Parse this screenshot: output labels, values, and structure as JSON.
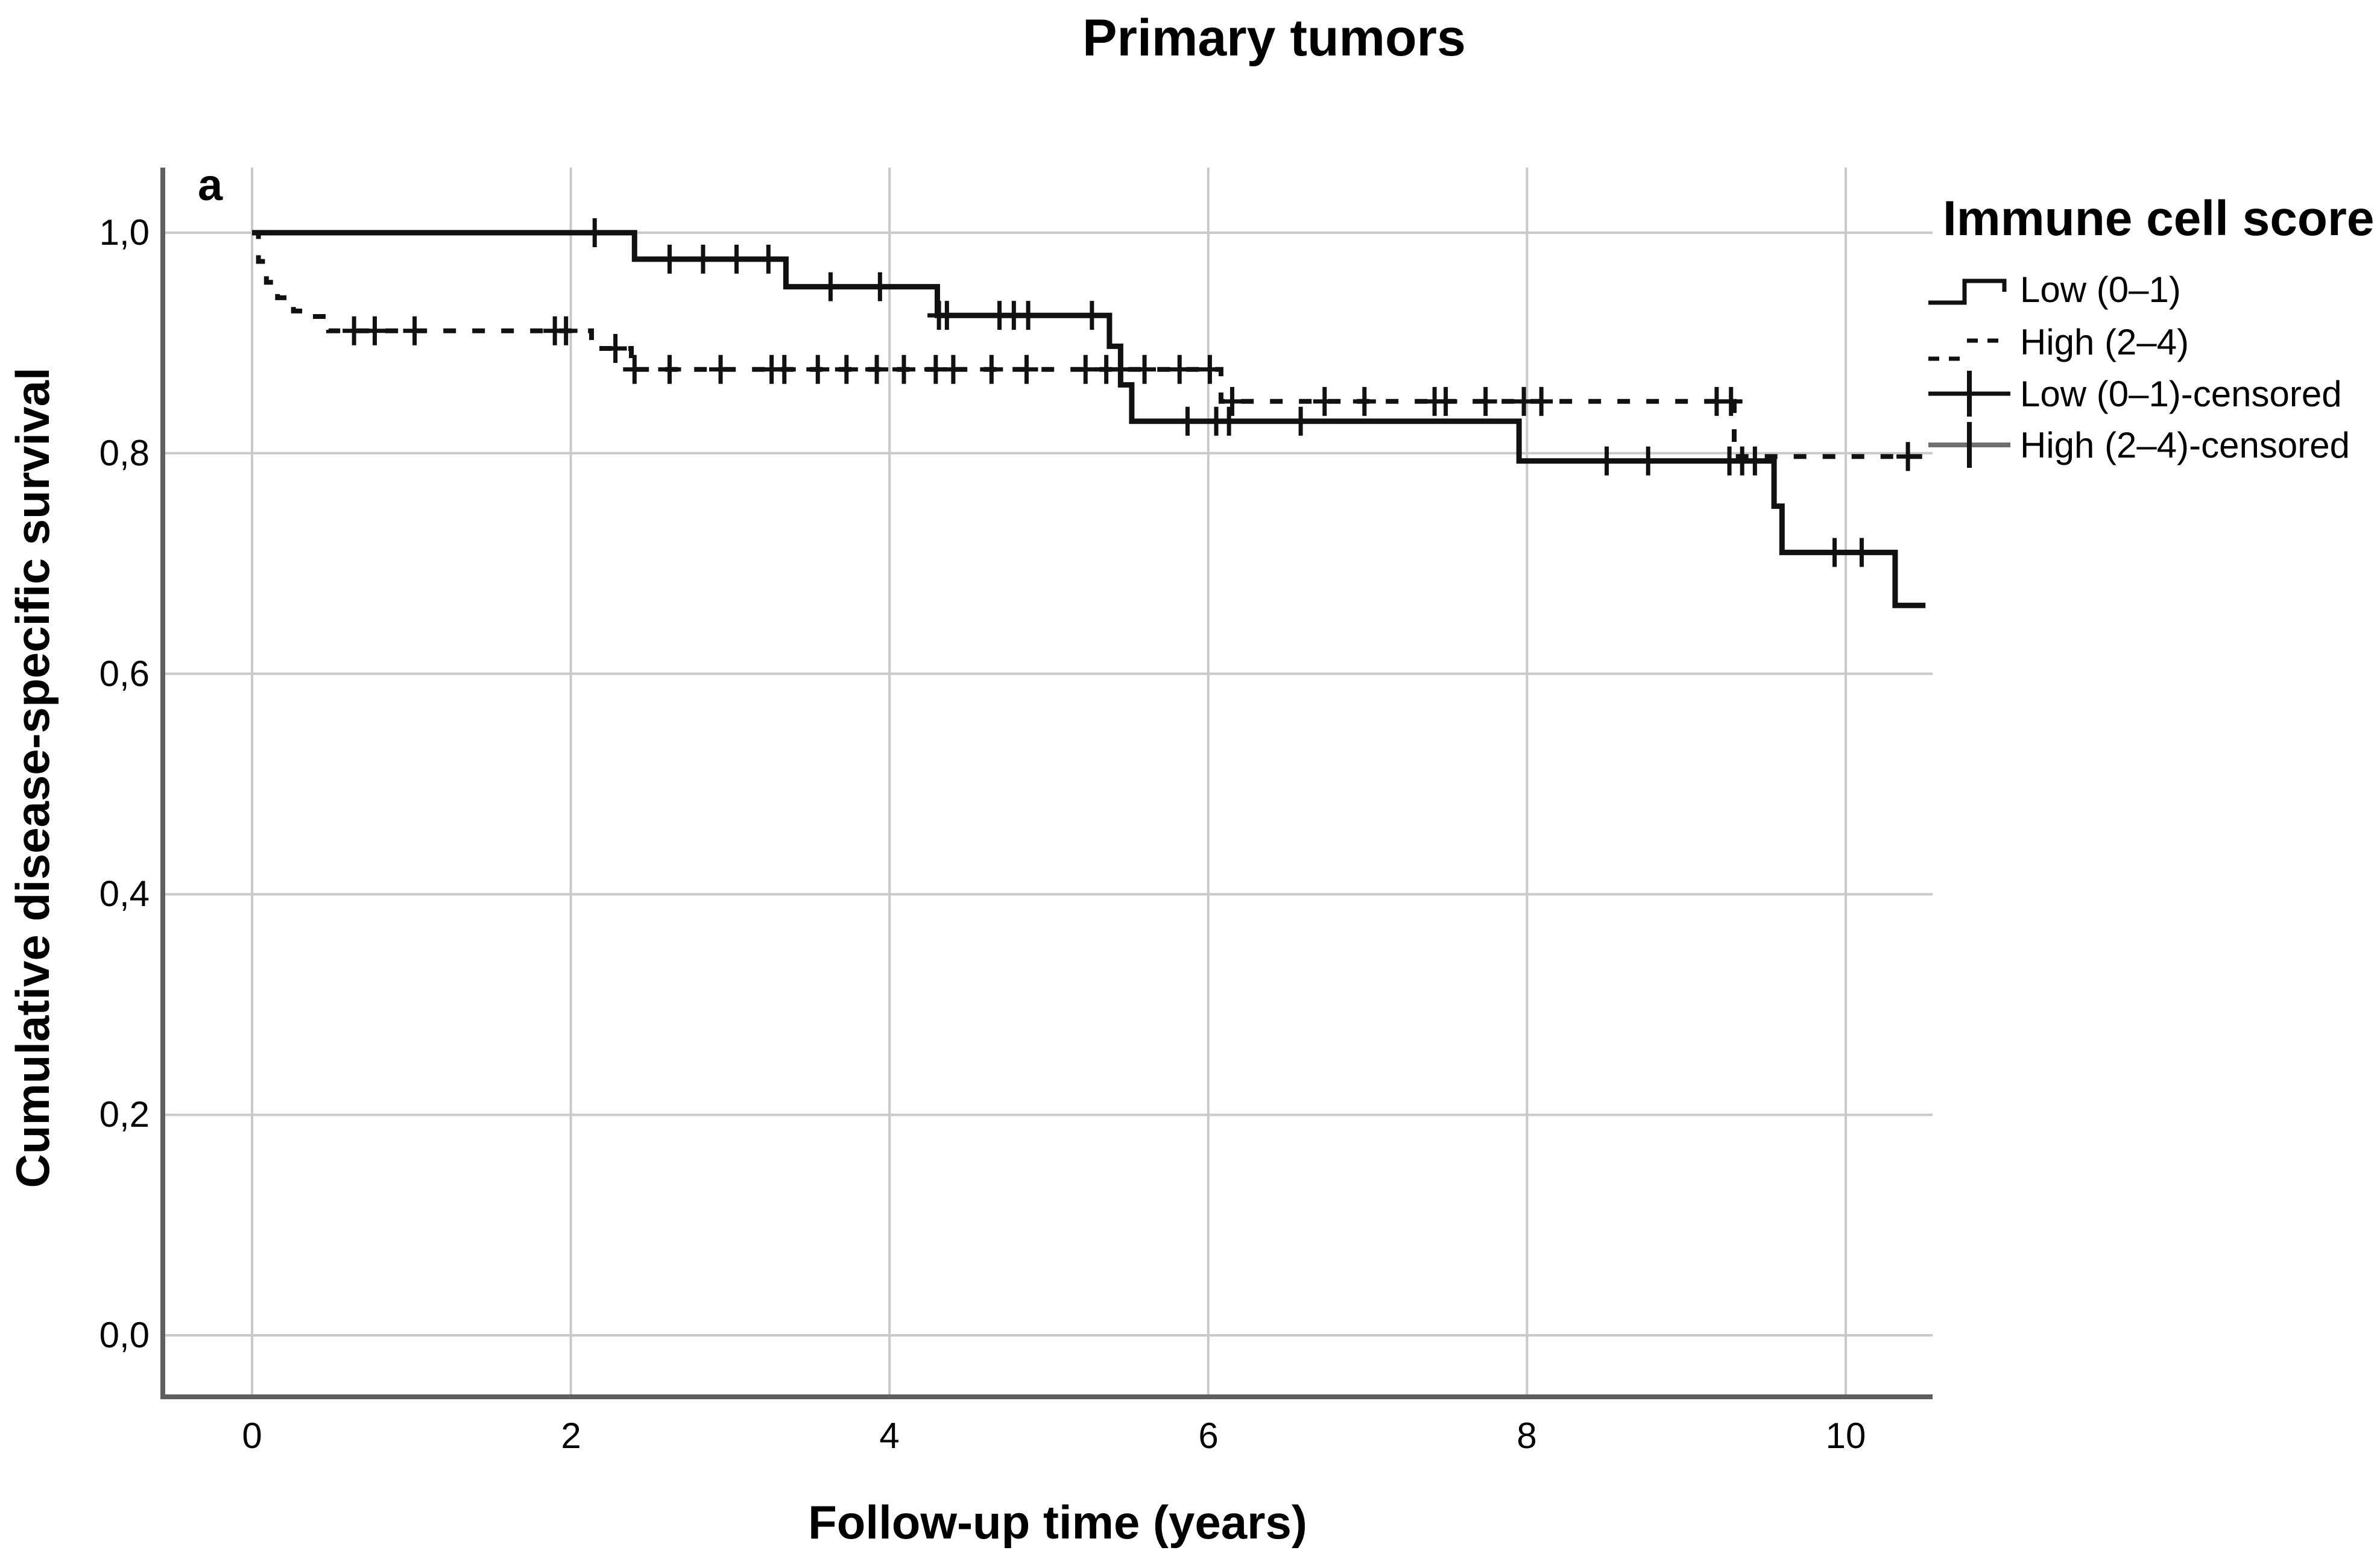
{
  "title": "Primary tumors",
  "panel_label": "a",
  "legend": {
    "title": "Immune cell score",
    "items": [
      {
        "label": "Low (0–1)",
        "symbol": "solid-step-line-sample"
      },
      {
        "label": "High (2–4)",
        "symbol": "dashed-step-line-sample"
      },
      {
        "label": "Low (0–1)-censored",
        "symbol": "censored-plus-sample"
      },
      {
        "label": "High (2–4)-censored",
        "symbol": "censored-plus-sample"
      }
    ]
  },
  "colors": {
    "curve": "#111111",
    "grid": "#c9c9c9",
    "axis": "#5f5f5f",
    "censored_line_alt": "#6f6f6f",
    "background": "#ffffff",
    "text": "#000000"
  },
  "chart_data": {
    "type": "line",
    "subtype": "kaplan-meier-step",
    "title": "Primary tumors",
    "xlabel": "Follow-up time (years)",
    "ylabel": "Cumulative disease-specific survival",
    "xlim": [
      -0.55,
      10.55
    ],
    "ylim": [
      -0.06,
      1.06
    ],
    "xticks": [
      0,
      2,
      4,
      6,
      8,
      10
    ],
    "yticks": [
      0.0,
      0.2,
      0.4,
      0.6,
      0.8,
      1.0
    ],
    "ytick_labels": [
      "0,0",
      "0,2",
      "0,4",
      "0,6",
      "0,8",
      "1,0"
    ],
    "grid": true,
    "legend_position": "right",
    "series": [
      {
        "id": "low",
        "name": "Low (0–1)",
        "style": "solid",
        "steps": [
          [
            0,
            1.0
          ],
          [
            2.4,
            1.0
          ],
          [
            2.4,
            0.976
          ],
          [
            3.35,
            0.976
          ],
          [
            3.35,
            0.951
          ],
          [
            4.3,
            0.951
          ],
          [
            4.3,
            0.925
          ],
          [
            5.38,
            0.925
          ],
          [
            5.38,
            0.897
          ],
          [
            5.45,
            0.897
          ],
          [
            5.45,
            0.862
          ],
          [
            5.52,
            0.862
          ],
          [
            5.52,
            0.829
          ],
          [
            7.95,
            0.829
          ],
          [
            7.95,
            0.793
          ],
          [
            9.55,
            0.793
          ],
          [
            9.55,
            0.752
          ],
          [
            9.6,
            0.752
          ],
          [
            9.6,
            0.71
          ],
          [
            10.31,
            0.71
          ],
          [
            10.31,
            0.662
          ],
          [
            10.5,
            0.662
          ]
        ],
        "censored": [
          [
            2.15,
            1.0
          ],
          [
            2.62,
            0.976
          ],
          [
            2.83,
            0.976
          ],
          [
            3.04,
            0.976
          ],
          [
            3.24,
            0.976
          ],
          [
            3.63,
            0.951
          ],
          [
            3.94,
            0.951
          ],
          [
            4.31,
            0.925
          ],
          [
            4.36,
            0.925
          ],
          [
            4.69,
            0.925
          ],
          [
            4.78,
            0.925
          ],
          [
            4.87,
            0.925
          ],
          [
            5.27,
            0.925
          ],
          [
            5.87,
            0.829
          ],
          [
            6.05,
            0.829
          ],
          [
            6.13,
            0.829
          ],
          [
            6.58,
            0.829
          ],
          [
            8.5,
            0.793
          ],
          [
            8.76,
            0.793
          ],
          [
            9.27,
            0.793
          ],
          [
            9.35,
            0.793
          ],
          [
            9.43,
            0.793
          ],
          [
            9.93,
            0.71
          ],
          [
            10.1,
            0.71
          ]
        ]
      },
      {
        "id": "high",
        "name": "High (2–4)",
        "style": "dashed",
        "steps": [
          [
            0,
            1.0
          ],
          [
            0.04,
            1.0
          ],
          [
            0.04,
            0.974
          ],
          [
            0.09,
            0.974
          ],
          [
            0.09,
            0.955
          ],
          [
            0.16,
            0.955
          ],
          [
            0.16,
            0.941
          ],
          [
            0.26,
            0.941
          ],
          [
            0.26,
            0.929
          ],
          [
            0.38,
            0.929
          ],
          [
            0.38,
            0.924
          ],
          [
            0.48,
            0.924
          ],
          [
            0.48,
            0.911
          ],
          [
            2.13,
            0.911
          ],
          [
            2.13,
            0.895
          ],
          [
            2.38,
            0.895
          ],
          [
            2.38,
            0.876
          ],
          [
            6.08,
            0.876
          ],
          [
            6.08,
            0.847
          ],
          [
            9.3,
            0.847
          ],
          [
            9.3,
            0.797
          ],
          [
            10.5,
            0.797
          ]
        ],
        "censored": [
          [
            0.64,
            0.911
          ],
          [
            0.77,
            0.911
          ],
          [
            1.02,
            0.911
          ],
          [
            1.9,
            0.911
          ],
          [
            1.97,
            0.911
          ],
          [
            2.28,
            0.895
          ],
          [
            2.4,
            0.876
          ],
          [
            2.62,
            0.876
          ],
          [
            2.94,
            0.876
          ],
          [
            3.26,
            0.876
          ],
          [
            3.34,
            0.876
          ],
          [
            3.55,
            0.876
          ],
          [
            3.73,
            0.876
          ],
          [
            3.92,
            0.876
          ],
          [
            4.09,
            0.876
          ],
          [
            4.29,
            0.876
          ],
          [
            4.4,
            0.876
          ],
          [
            4.64,
            0.876
          ],
          [
            4.86,
            0.876
          ],
          [
            5.23,
            0.876
          ],
          [
            5.36,
            0.876
          ],
          [
            5.45,
            0.876
          ],
          [
            5.6,
            0.876
          ],
          [
            5.82,
            0.876
          ],
          [
            6.01,
            0.876
          ],
          [
            6.15,
            0.847
          ],
          [
            6.73,
            0.847
          ],
          [
            6.98,
            0.847
          ],
          [
            7.42,
            0.847
          ],
          [
            7.49,
            0.847
          ],
          [
            7.74,
            0.847
          ],
          [
            7.98,
            0.847
          ],
          [
            8.09,
            0.847
          ],
          [
            9.19,
            0.847
          ],
          [
            9.28,
            0.847
          ],
          [
            10.39,
            0.797
          ]
        ]
      }
    ]
  }
}
